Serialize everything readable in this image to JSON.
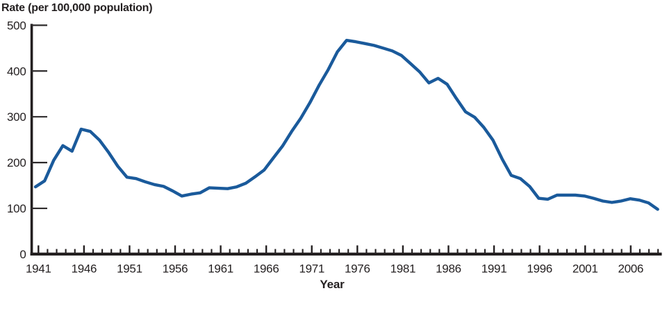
{
  "figure": {
    "y_axis_title": "Rate (per 100,000 population)",
    "x_axis_title": "Year"
  },
  "chart_data": {
    "type": "line",
    "title": "Rate (per 100,000 population)",
    "xlabel": "Year",
    "ylabel": "Rate (per 100,000 population)",
    "ylim": [
      0,
      500
    ],
    "y_tick_labels": [
      "0",
      "100",
      "200",
      "300",
      "400",
      "500"
    ],
    "y_tick_values": [
      0,
      100,
      200,
      300,
      400,
      500
    ],
    "x_tick_labels": [
      "1941",
      "1946",
      "1951",
      "1956",
      "1961",
      "1966",
      "1971",
      "1976",
      "1981",
      "1986",
      "1991",
      "1996",
      "2001",
      "2006"
    ],
    "x_major_tick_years": [
      1941,
      1946,
      1951,
      1956,
      1961,
      1966,
      1971,
      1976,
      1981,
      1986,
      1991,
      1996,
      2001,
      2006
    ],
    "x_minor_tick_interval": 1,
    "x_range": [
      1941,
      2009
    ],
    "grid": false,
    "legend_position": "none",
    "line_color": "#1a5a9b",
    "axis_color": "#231f20",
    "tick_color": "#2d2a2b",
    "series": [
      {
        "name": "Rate per 100,000 population",
        "x": [
          1941,
          1942,
          1943,
          1944,
          1945,
          1946,
          1947,
          1948,
          1949,
          1950,
          1951,
          1952,
          1953,
          1954,
          1955,
          1956,
          1957,
          1958,
          1959,
          1960,
          1961,
          1962,
          1963,
          1964,
          1965,
          1966,
          1967,
          1968,
          1969,
          1970,
          1971,
          1972,
          1973,
          1974,
          1975,
          1976,
          1977,
          1978,
          1979,
          1980,
          1981,
          1982,
          1983,
          1984,
          1985,
          1986,
          1987,
          1988,
          1989,
          1990,
          1991,
          1992,
          1993,
          1994,
          1995,
          1996,
          1997,
          1998,
          1999,
          2000,
          2001,
          2002,
          2003,
          2004,
          2005,
          2006,
          2007,
          2008,
          2009
        ],
        "values": [
          147,
          160,
          205,
          237,
          225,
          273,
          268,
          249,
          222,
          192,
          168,
          165,
          158,
          152,
          148,
          138,
          127,
          131,
          134,
          145,
          144,
          143,
          147,
          155,
          169,
          184,
          210,
          236,
          268,
          297,
          331,
          369,
          403,
          442,
          467,
          464,
          460,
          456,
          450,
          444,
          434,
          416,
          398,
          374,
          384,
          371,
          340,
          311,
          299,
          277,
          249,
          208,
          172,
          165,
          148,
          122,
          120,
          129,
          129,
          129,
          127,
          122,
          116,
          113,
          116,
          121,
          118,
          112,
          98
        ]
      }
    ]
  }
}
